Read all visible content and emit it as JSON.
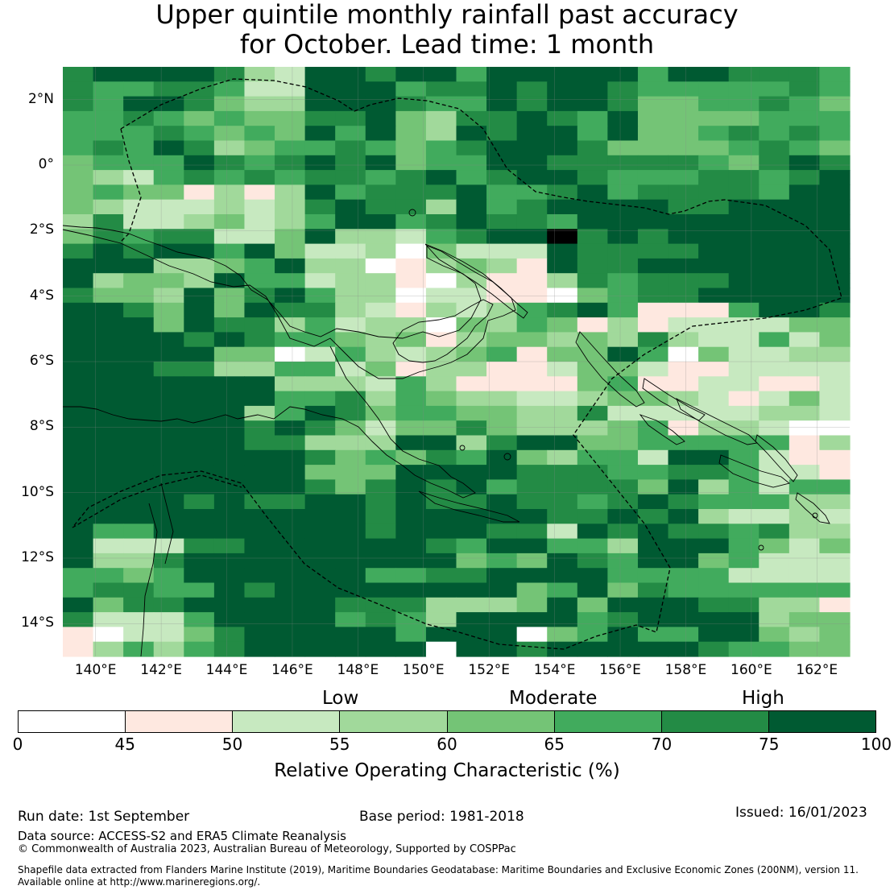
{
  "title": {
    "line1": "Upper quintile monthly rainfall past accuracy",
    "line2": "for October. Lead time: 1 month"
  },
  "map": {
    "lat_labels": [
      "2°N",
      "0°",
      "2°S",
      "4°S",
      "6°S",
      "8°S",
      "10°S",
      "12°S",
      "14°S"
    ],
    "lat_values": [
      2,
      0,
      -2,
      -4,
      -6,
      -8,
      -10,
      -12,
      -14
    ],
    "lon_labels": [
      "140°E",
      "142°E",
      "144°E",
      "146°E",
      "148°E",
      "150°E",
      "152°E",
      "154°E",
      "156°E",
      "158°E",
      "160°E",
      "162°E"
    ],
    "lon_values": [
      140,
      142,
      144,
      146,
      148,
      150,
      152,
      154,
      156,
      158,
      160,
      162
    ],
    "lon_range": [
      139,
      163
    ],
    "lat_range": [
      -15,
      3
    ],
    "grid_resolution_deg": 0.8
  },
  "legend": {
    "categories": [
      "Low",
      "Moderate",
      "High"
    ],
    "ticks": [
      "0",
      "45",
      "50",
      "55",
      "60",
      "65",
      "70",
      "75",
      "100"
    ],
    "colors": [
      "#ffffff",
      "#fee8e0",
      "#c7e9c0",
      "#a1d99b",
      "#74c476",
      "#41ab5d",
      "#238b45",
      "#005a32"
    ],
    "title": "Relative Operating Characteristic (%)"
  },
  "footer": {
    "run_date": "Run date: 1st September",
    "base_period": "Base period: 1981-2018",
    "issued": "Issued: 16/01/2023",
    "data_source": "Data source: ACCESS-S2 and ERA5 Climate Reanalysis",
    "copyright": "© Commonwealth of Australia 2023, Australian Bureau of Meteorology, Supported by COSPPac",
    "shapefile1": "Shapefile data extracted from Flanders Marine Institute (2019), Maritime Boundaries Geodatabase: Maritime Boundaries and Exclusive Economic Zones (200NM), version 11.",
    "shapefile2": "Available online at http://www.marineregions.org/."
  },
  "grid": [
    "67777632776775777775776665",
    "65566522777566767765555565",
    "65776433777655767764455654",
    "55654544667436676574444555",
    "55565454757437677574456565",
    "56576345565456777644445654",
    "45557656767455776666654676",
    "43256565665675677655566567",
    "45441313756667556756666577",
    "43222323676637567777667777",
    "36223423577567665777777777",
    "46566224733256778676777777",
    "67677574223042227666677777",
    "77733457330134317667777777",
    "73443755233103113656667777",
    "64437467533022110456677777",
    "77647476632132356751115776",
    "77747663523304354131222244",
    "77776765543413443436322524",
    "77777440253234514475042233",
    "77766335524133112442112222",
    "77777773332531111451122112",
    "77777775563543322344321242",
    "77777735764554433622222332",
    "77777767642446433345133200",
    "77777766333773677445555513",
    "77777777645465743552775211",
    "77777777444777766655665221",
    "77777777646767566664735255",
    "77776766776766766567655533",
    "77777777776777776676732232",
    "75577777776777662767665633",
    "72226677777765775537775424",
    "73367777777774547657745222",
    "55457777775566777755552222",
    "56655767777777745746555555",
    "74667777766633347477766331",
    "62225777756537777567777344",
    "10224677777577704575577434",
    "13535677777707767777765544"
  ]
}
